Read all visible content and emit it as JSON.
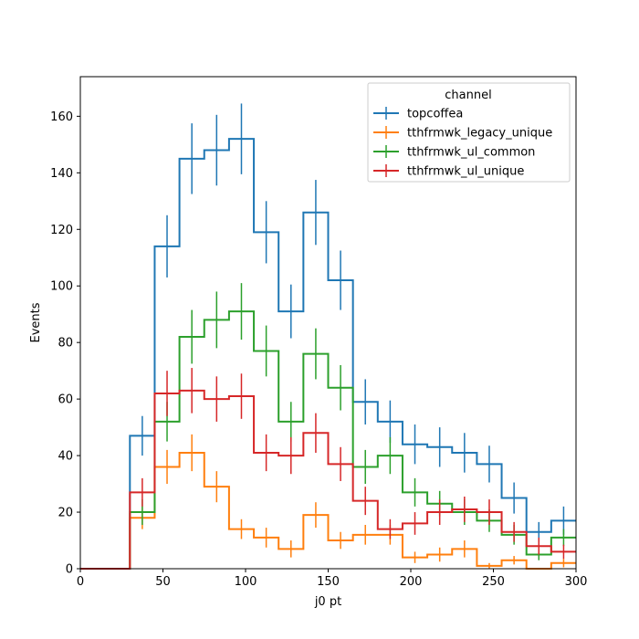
{
  "chart_data": {
    "type": "histogram",
    "xlabel": "j0 pt",
    "ylabel": "Events",
    "xlim": [
      0,
      300
    ],
    "ylim": [
      0,
      174
    ],
    "xticks": [
      0,
      50,
      100,
      150,
      200,
      250,
      300
    ],
    "yticks": [
      0,
      20,
      40,
      60,
      80,
      100,
      120,
      140,
      160
    ],
    "grid": false,
    "legend": {
      "title": "channel",
      "placement": "top-right"
    },
    "bin_edges": [
      0,
      15,
      30,
      45,
      60,
      75,
      90,
      105,
      120,
      135,
      150,
      165,
      180,
      195,
      210,
      225,
      240,
      255,
      270,
      285,
      300
    ],
    "series": [
      {
        "name": "topcoffea",
        "color": "#1f77b4",
        "values": [
          0,
          0,
          47,
          114,
          145,
          148,
          152,
          119,
          91,
          126,
          102,
          59,
          52,
          44,
          43,
          41,
          37,
          25,
          13,
          17
        ],
        "errors": [
          0,
          0,
          7,
          11,
          12.5,
          12.5,
          12.5,
          11,
          9.5,
          11.5,
          10.5,
          8,
          7.5,
          7,
          7,
          7,
          6.5,
          5.5,
          3.5,
          5
        ]
      },
      {
        "name": "tthfrmwk_legacy_unique",
        "color": "#ff7f0e",
        "values": [
          0,
          0,
          18,
          36,
          41,
          29,
          14,
          11,
          7,
          19,
          10,
          12,
          12,
          4,
          5,
          7,
          1,
          3,
          0,
          2
        ],
        "errors": [
          0,
          0,
          4,
          6,
          6.5,
          5.5,
          3.5,
          3.5,
          3,
          4.5,
          3,
          3.5,
          3.5,
          2,
          2.5,
          3,
          1,
          1.5,
          0,
          1.5
        ]
      },
      {
        "name": "tthfrmwk_ul_common",
        "color": "#2ca02c",
        "values": [
          0,
          0,
          20,
          52,
          82,
          88,
          91,
          77,
          52,
          76,
          64,
          36,
          40,
          27,
          23,
          20,
          17,
          12,
          5,
          11
        ],
        "errors": [
          0,
          0,
          4.5,
          7,
          9.5,
          10,
          10,
          9,
          7,
          9,
          8,
          6,
          6.5,
          5,
          4.5,
          4.5,
          4,
          3.5,
          2,
          3
        ]
      },
      {
        "name": "tthfrmwk_ul_unique",
        "color": "#d62728",
        "values": [
          0,
          0,
          27,
          62,
          63,
          60,
          61,
          41,
          40,
          48,
          37,
          24,
          14,
          16,
          20,
          21,
          20,
          13,
          8,
          6
        ],
        "errors": [
          0,
          0,
          5,
          8,
          8,
          8,
          8,
          6.5,
          6.5,
          7,
          6,
          5,
          3.5,
          4,
          4.5,
          4.5,
          4.5,
          3.5,
          3,
          2.5
        ]
      }
    ]
  }
}
